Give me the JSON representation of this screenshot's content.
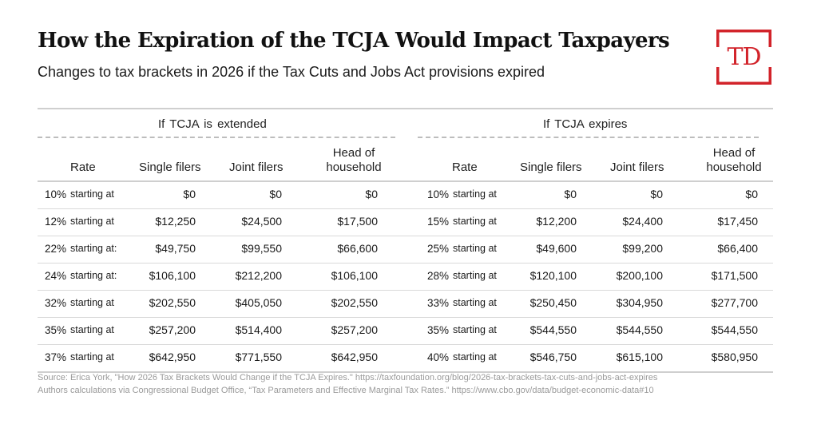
{
  "title": "How the Expiration of the TCJA Would Impact Taxpayers",
  "subtitle": "Changes to tax brackets in 2026 if the Tax Cuts and Jobs Act provisions expired",
  "logo": {
    "text": "TD",
    "color": "#d2232a"
  },
  "groups": {
    "extended": "If TCJA is extended",
    "expires": "If TCJA expires"
  },
  "headers": {
    "rate": "Rate",
    "single": "Single filers",
    "joint": "Joint filers",
    "head_line1": "Head of",
    "head_line2": "household"
  },
  "extended_rows": [
    {
      "rate": "10%",
      "label": "starting at",
      "single": "$0",
      "joint": "$0",
      "head": "$0"
    },
    {
      "rate": "12%",
      "label": "starting at",
      "single": "$12,250",
      "joint": "$24,500",
      "head": "$17,500"
    },
    {
      "rate": "22%",
      "label": "starting at:",
      "single": "$49,750",
      "joint": "$99,550",
      "head": "$66,600"
    },
    {
      "rate": "24%",
      "label": "starting at:",
      "single": "$106,100",
      "joint": "$212,200",
      "head": "$106,100"
    },
    {
      "rate": "32%",
      "label": "starting at",
      "single": "$202,550",
      "joint": "$405,050",
      "head": "$202,550"
    },
    {
      "rate": "35%",
      "label": "starting at",
      "single": "$257,200",
      "joint": "$514,400",
      "head": "$257,200"
    },
    {
      "rate": "37%",
      "label": "starting at",
      "single": "$642,950",
      "joint": "$771,550",
      "head": "$642,950"
    }
  ],
  "expires_rows": [
    {
      "rate": "10%",
      "label": "starting at",
      "single": "$0",
      "joint": "$0",
      "head": "$0"
    },
    {
      "rate": "15%",
      "label": "starting at",
      "single": "$12,200",
      "joint": "$24,400",
      "head": "$17,450"
    },
    {
      "rate": "25%",
      "label": "starting at",
      "single": "$49,600",
      "joint": "$99,200",
      "head": "$66,400"
    },
    {
      "rate": "28%",
      "label": "starting at",
      "single": "$120,100",
      "joint": "$200,100",
      "head": "$171,500"
    },
    {
      "rate": "33%",
      "label": "starting at",
      "single": "$250,450",
      "joint": "$304,950",
      "head": "$277,700"
    },
    {
      "rate": "35%",
      "label": "starting at",
      "single": "$544,550",
      "joint": "$544,550",
      "head": "$544,550"
    },
    {
      "rate": "40%",
      "label": "starting at",
      "single": "$546,750",
      "joint": "$615,100",
      "head": "$580,950"
    }
  ],
  "source": {
    "line1": "Source: Erica York, \"How 2026 Tax Brackets Would Change if the TCJA Expires.\" https://taxfoundation.org/blog/2026-tax-brackets-tax-cuts-and-jobs-act-expires",
    "line2": "Authors calculations via Congressional Budget Office, “Tax Parameters and Effective Marginal Tax Rates.” https://www.cbo.gov/data/budget-economic-data#10"
  }
}
